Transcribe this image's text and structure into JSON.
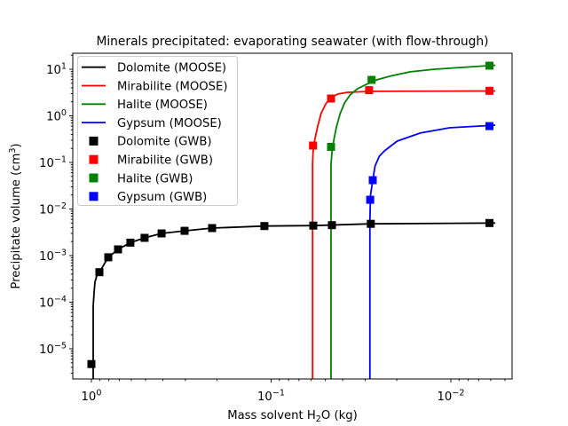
{
  "figure": {
    "title": "Minerals precipitated: evaporating seawater (with flow-through)"
  },
  "chart_data": {
    "type": "line",
    "title": "Minerals precipitated: evaporating seawater (with flow-through)",
    "xlabel": "Mass solvent H2O (kg)",
    "xlabel_parts": {
      "pre": "Mass solvent H",
      "sub": "2",
      "post": "O (kg)"
    },
    "ylabel": "Precipitate volume (cm3)",
    "ylabel_parts": {
      "pre": "Precipitate volume (cm",
      "sup": "3",
      "post": ")"
    },
    "x_axis": {
      "scale": "log",
      "inverted": true,
      "left_value": 1.27,
      "right_value": 0.00456,
      "major_ticks": [
        {
          "value": 1,
          "exp": "0"
        },
        {
          "value": 0.1,
          "exp": "−1"
        },
        {
          "value": 0.01,
          "exp": "−2"
        }
      ]
    },
    "y_axis": {
      "scale": "log",
      "min": 2.2e-06,
      "max": 22,
      "major_ticks": [
        {
          "value": 10,
          "exp": "1"
        },
        {
          "value": 1,
          "exp": "0"
        },
        {
          "value": 0.1,
          "exp": "−1"
        },
        {
          "value": 0.01,
          "exp": "−2"
        },
        {
          "value": 0.001,
          "exp": "−3"
        },
        {
          "value": 0.0001,
          "exp": "−4"
        },
        {
          "value": 1e-05,
          "exp": "−5"
        }
      ]
    },
    "legend": {
      "position": "upper-left"
    },
    "grid": false,
    "series": [
      {
        "name": "Dolomite (MOOSE)",
        "color": "#000000",
        "style": "line",
        "points": [
          [
            0.977,
            2.2e-06
          ],
          [
            0.977,
            8.2e-05
          ],
          [
            0.967,
            0.00016
          ],
          [
            0.956,
            0.00027
          ],
          [
            0.934,
            0.00037
          ],
          [
            0.903,
            0.00044
          ],
          [
            0.806,
            0.00092
          ],
          [
            0.711,
            0.00136
          ],
          [
            0.607,
            0.0019
          ],
          [
            0.506,
            0.0024
          ],
          [
            0.407,
            0.003
          ],
          [
            0.303,
            0.0034
          ],
          [
            0.213,
            0.0039
          ],
          [
            0.109,
            0.0043
          ],
          [
            0.0583,
            0.0044
          ],
          [
            0.0279,
            0.0048
          ],
          [
            0.00566,
            0.005
          ]
        ]
      },
      {
        "name": "Mirabilite (MOOSE)",
        "color": "#ff0000",
        "style": "line",
        "points": [
          [
            0.0588,
            2.2e-06
          ],
          [
            0.0588,
            0.092
          ],
          [
            0.0585,
            0.163
          ],
          [
            0.0572,
            0.3
          ],
          [
            0.0552,
            0.58
          ],
          [
            0.0527,
            1.12
          ],
          [
            0.0497,
            1.8
          ],
          [
            0.0464,
            2.46
          ],
          [
            0.0424,
            2.95
          ],
          [
            0.0374,
            3.2
          ],
          [
            0.0273,
            3.35
          ],
          [
            0.00566,
            3.42
          ]
        ]
      },
      {
        "name": "Halite (MOOSE)",
        "color": "#008000",
        "style": "line",
        "points": [
          [
            0.0464,
            2.2e-06
          ],
          [
            0.0464,
            0.092
          ],
          [
            0.0459,
            0.163
          ],
          [
            0.0448,
            0.3
          ],
          [
            0.0433,
            0.58
          ],
          [
            0.0413,
            1.12
          ],
          [
            0.039,
            1.9
          ],
          [
            0.0364,
            2.8
          ],
          [
            0.0331,
            3.8
          ],
          [
            0.0296,
            4.7
          ],
          [
            0.0259,
            5.9
          ],
          [
            0.0215,
            7.2
          ],
          [
            0.0168,
            8.8
          ],
          [
            0.0123,
            10.0
          ],
          [
            0.00875,
            10.9
          ],
          [
            0.00566,
            12.2
          ]
        ]
      },
      {
        "name": "Gypsum (MOOSE)",
        "color": "#0000ff",
        "style": "line",
        "points": [
          [
            0.0282,
            2.2e-06
          ],
          [
            0.0282,
            0.0053
          ],
          [
            0.0281,
            0.01
          ],
          [
            0.028,
            0.02
          ],
          [
            0.0273,
            0.038
          ],
          [
            0.0264,
            0.084
          ],
          [
            0.025,
            0.136
          ],
          [
            0.0234,
            0.177
          ],
          [
            0.0199,
            0.287
          ],
          [
            0.0148,
            0.427
          ],
          [
            0.0101,
            0.555
          ],
          [
            0.00607,
            0.62
          ],
          [
            0.00566,
            0.63
          ]
        ]
      },
      {
        "name": "Dolomite (GWB)",
        "color": "#000000",
        "style": "square",
        "points": [
          [
            1.0,
            4.7e-06
          ],
          [
            0.903,
            0.00044
          ],
          [
            0.806,
            0.00092
          ],
          [
            0.711,
            0.00136
          ],
          [
            0.607,
            0.0019
          ],
          [
            0.506,
            0.0024
          ],
          [
            0.407,
            0.003
          ],
          [
            0.303,
            0.0034
          ],
          [
            0.213,
            0.0039
          ],
          [
            0.109,
            0.0043
          ],
          [
            0.0583,
            0.0044
          ],
          [
            0.0459,
            0.0045
          ],
          [
            0.0279,
            0.0048
          ],
          [
            0.0061,
            0.005
          ]
        ]
      },
      {
        "name": "Mirabilite (GWB)",
        "color": "#ff0000",
        "style": "square",
        "points": [
          [
            0.0585,
            0.23
          ],
          [
            0.0464,
            2.35
          ],
          [
            0.0285,
            3.55
          ],
          [
            0.0061,
            3.45
          ]
        ]
      },
      {
        "name": "Halite (GWB)",
        "color": "#008000",
        "style": "square",
        "points": [
          [
            0.0464,
            0.215
          ],
          [
            0.0276,
            5.9
          ],
          [
            0.0061,
            11.9
          ]
        ]
      },
      {
        "name": "Gypsum (GWB)",
        "color": "#0000ff",
        "style": "square",
        "points": [
          [
            0.0281,
            0.0158
          ],
          [
            0.0272,
            0.0416
          ],
          [
            0.0061,
            0.6
          ]
        ]
      }
    ]
  }
}
